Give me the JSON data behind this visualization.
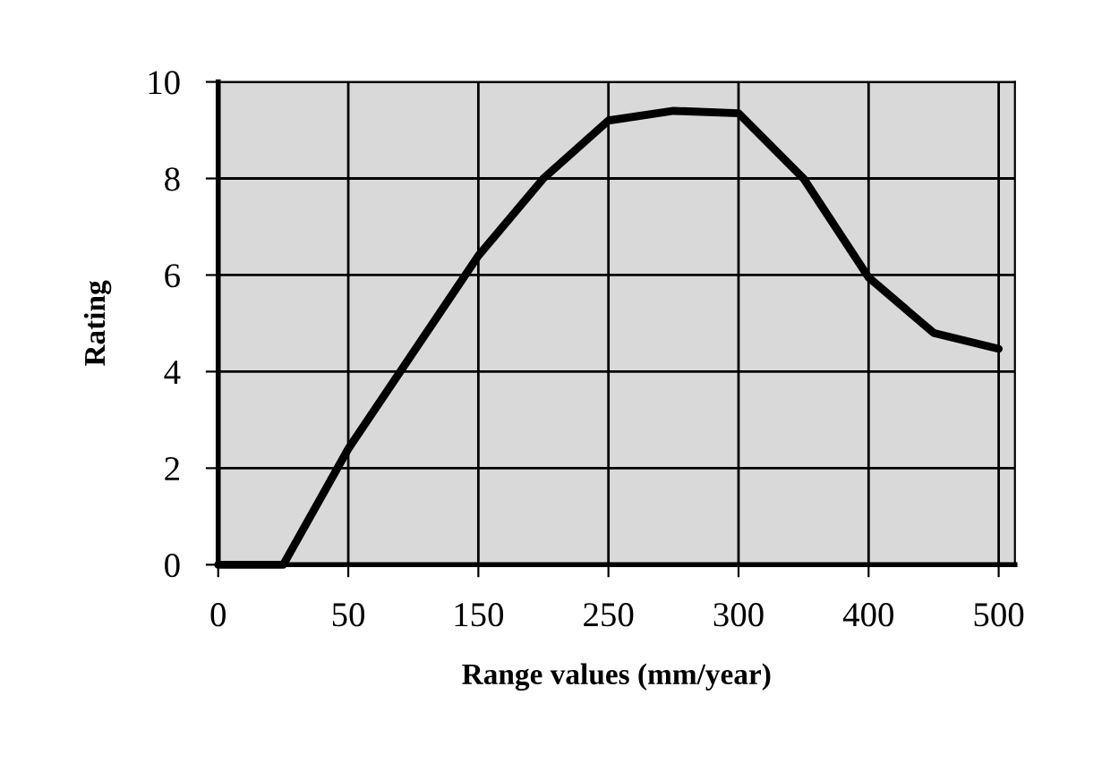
{
  "chart_data": {
    "type": "line",
    "xlabel": "Range values (mm/year)",
    "ylabel": "Rating",
    "categories": [
      "0",
      null,
      "50",
      null,
      "150",
      null,
      "250",
      null,
      "300",
      null,
      "400",
      null,
      "500"
    ],
    "series": [
      {
        "color": "#000000",
        "values": [
          0,
          0,
          2.4,
          4.4,
          6.4,
          8.0,
          9.2,
          9.4,
          9.35,
          8.0,
          5.95,
          4.8,
          4.47
        ]
      }
    ],
    "ylim": [
      0,
      10
    ],
    "yticks": [
      0,
      2,
      4,
      6,
      8,
      10
    ],
    "grid": true,
    "marker": "none",
    "line_style": "solid"
  }
}
